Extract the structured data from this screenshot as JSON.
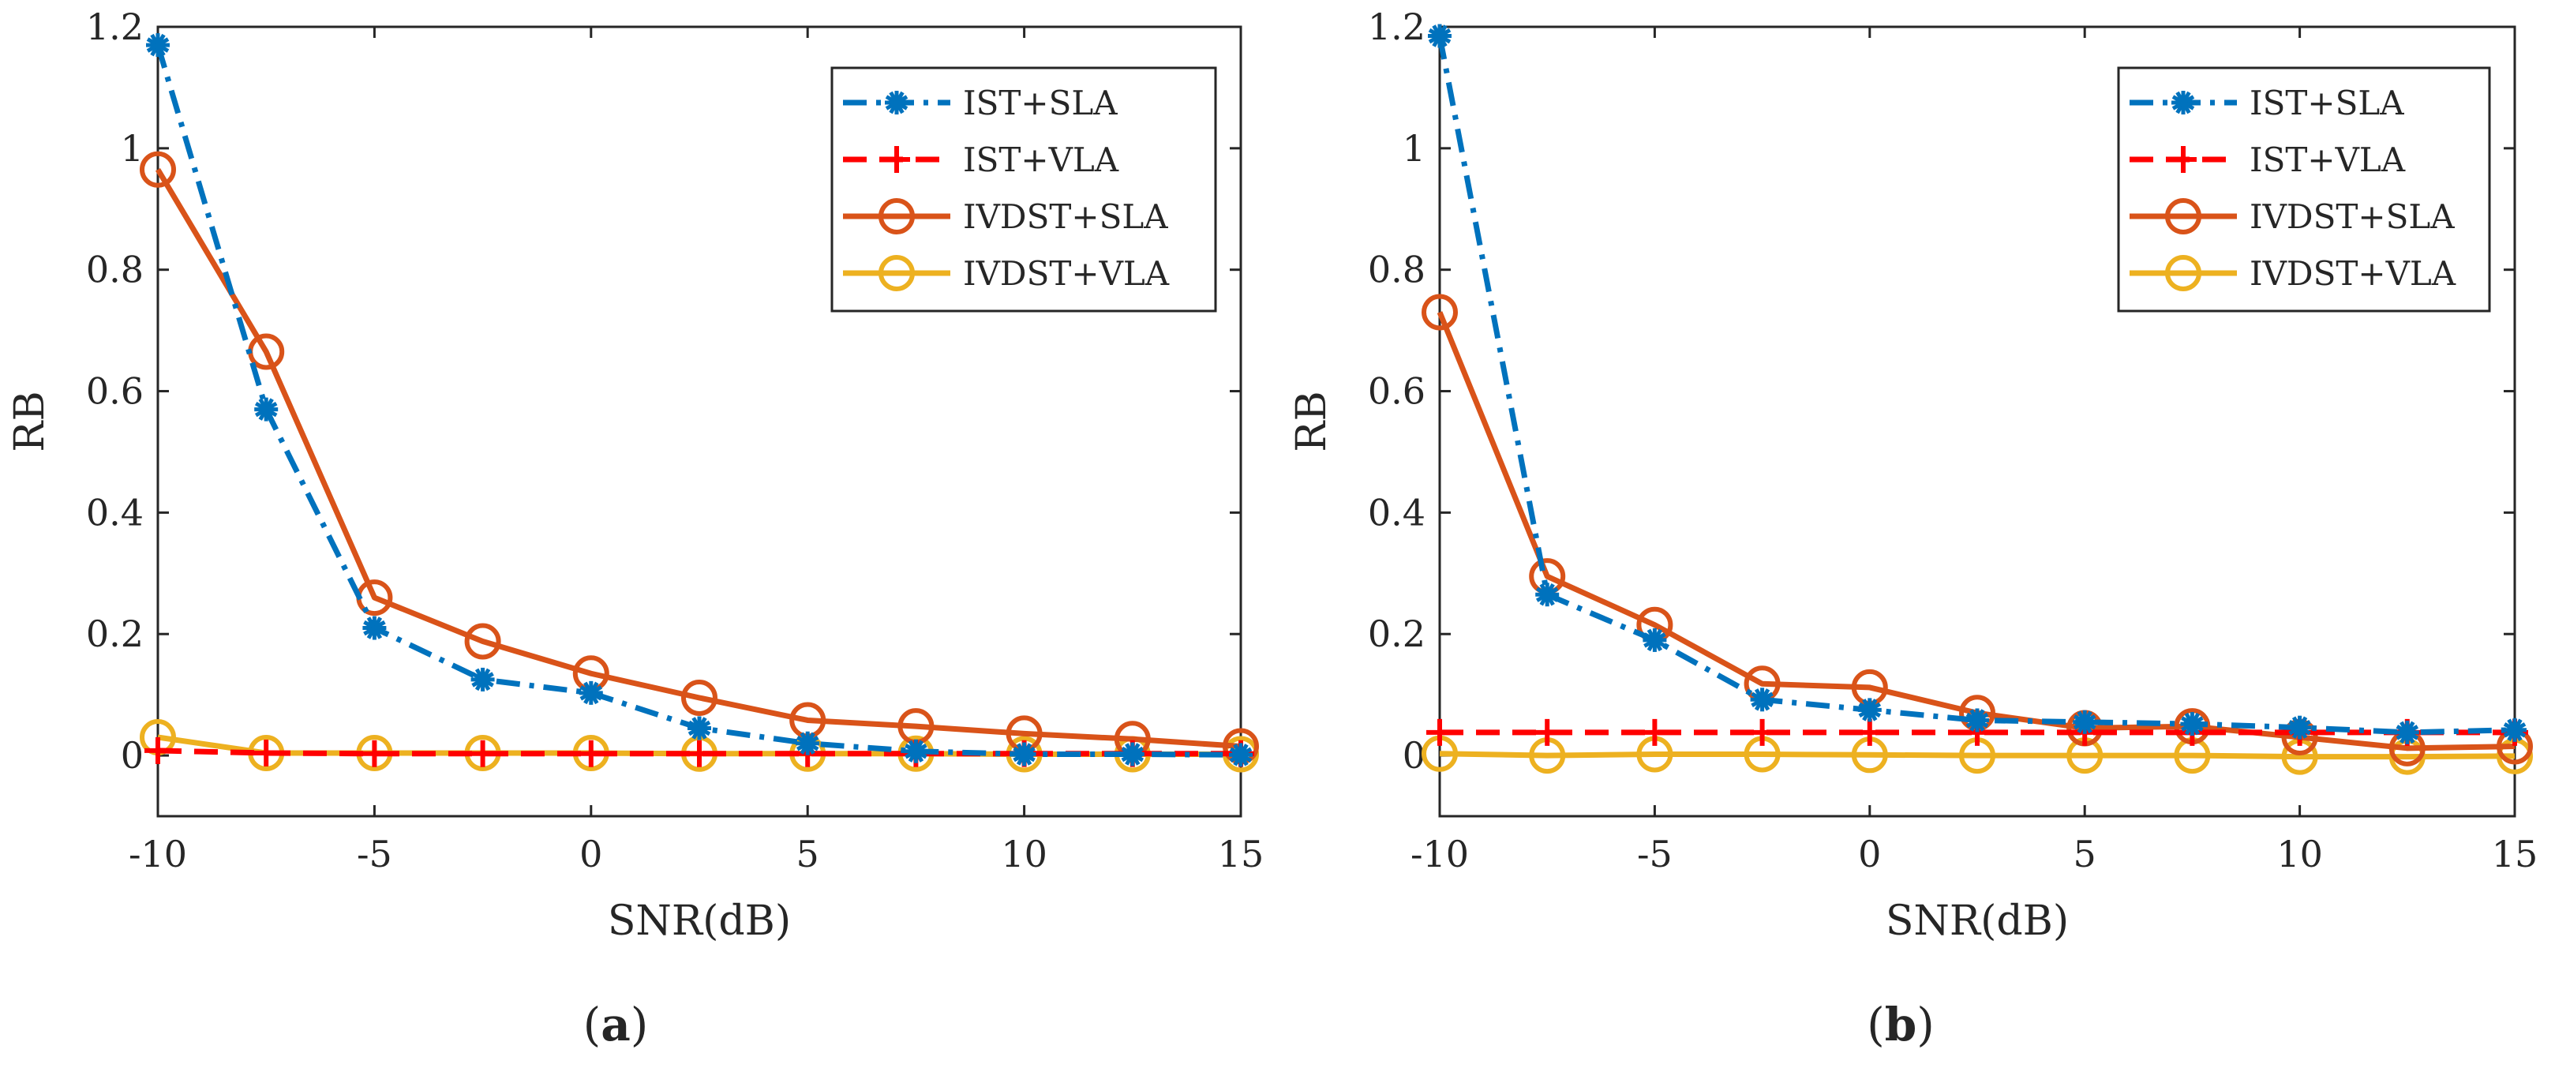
{
  "figure": {
    "panels": [
      {
        "label_open": "(",
        "label_letter": "a",
        "label_close": ")"
      },
      {
        "label_open": "(",
        "label_letter": "b",
        "label_close": ")"
      }
    ]
  },
  "chart_data": [
    {
      "type": "line",
      "title": "",
      "xlabel": "SNR(dB)",
      "ylabel": "RB",
      "xlim": [
        -10,
        15
      ],
      "ylim": [
        -0.1,
        1.2
      ],
      "xticks": [
        -10,
        -5,
        0,
        5,
        10,
        15
      ],
      "xtick_labels": [
        "-10",
        "-5",
        "0",
        "5",
        "10",
        "15"
      ],
      "yticks": [
        0,
        0.2,
        0.4,
        0.6,
        0.8,
        1.0,
        1.2
      ],
      "ytick_labels": [
        "0",
        "0.2",
        "0.4",
        "0.6",
        "0.8",
        "1",
        "1.2"
      ],
      "grid": false,
      "legend_position": "top-right",
      "x": [
        -10,
        -7.5,
        -5,
        -2.5,
        0,
        2.5,
        5,
        7.5,
        10,
        12.5,
        15
      ],
      "series": [
        {
          "name": "IST+SLA",
          "color": "#0072BD",
          "line": "dashdot",
          "marker": "asterisk",
          "values": [
            1.17,
            0.57,
            0.21,
            0.125,
            0.103,
            0.045,
            0.02,
            0.007,
            0.002,
            0.002,
            0.001
          ]
        },
        {
          "name": "IST+VLA",
          "color": "#FF0000",
          "line": "dashed",
          "marker": "plus",
          "values": [
            0.008,
            0.004,
            0.003,
            0.003,
            0.003,
            0.003,
            0.003,
            0.003,
            0.003,
            0.003,
            0.003
          ]
        },
        {
          "name": "IVDST+SLA",
          "color": "#D95319",
          "line": "solid",
          "marker": "circle",
          "values": [
            0.965,
            0.665,
            0.26,
            0.188,
            0.135,
            0.095,
            0.058,
            0.048,
            0.036,
            0.027,
            0.015
          ]
        },
        {
          "name": "IVDST+VLA",
          "color": "#EDB120",
          "line": "solid",
          "marker": "circle",
          "values": [
            0.03,
            0.004,
            0.004,
            0.004,
            0.004,
            0.003,
            0.003,
            0.003,
            0.002,
            0.002,
            0.002
          ]
        }
      ]
    },
    {
      "type": "line",
      "title": "",
      "xlabel": "SNR(dB)",
      "ylabel": "RB",
      "xlim": [
        -10,
        15
      ],
      "ylim": [
        -0.1,
        1.2
      ],
      "xticks": [
        -10,
        -5,
        0,
        5,
        10,
        15
      ],
      "xtick_labels": [
        "-10",
        "-5",
        "0",
        "5",
        "10",
        "15"
      ],
      "yticks": [
        0,
        0.2,
        0.4,
        0.6,
        0.8,
        1.0,
        1.2
      ],
      "ytick_labels": [
        "0",
        "0.2",
        "0.4",
        "0.6",
        "0.8",
        "1",
        "1.2"
      ],
      "grid": false,
      "legend_position": "top-right",
      "x": [
        -10,
        -7.5,
        -5,
        -2.5,
        0,
        2.5,
        5,
        7.5,
        10,
        12.5,
        15
      ],
      "series": [
        {
          "name": "IST+SLA",
          "color": "#0072BD",
          "line": "dashdot",
          "marker": "asterisk",
          "values": [
            1.185,
            0.265,
            0.19,
            0.092,
            0.075,
            0.058,
            0.055,
            0.052,
            0.046,
            0.038,
            0.042
          ]
        },
        {
          "name": "IST+VLA",
          "color": "#FF0000",
          "line": "dashed",
          "marker": "plus",
          "values": [
            0.038,
            0.038,
            0.038,
            0.038,
            0.038,
            0.038,
            0.038,
            0.038,
            0.038,
            0.038,
            0.038
          ]
        },
        {
          "name": "IVDST+SLA",
          "color": "#D95319",
          "line": "solid",
          "marker": "circle",
          "values": [
            0.73,
            0.295,
            0.215,
            0.118,
            0.112,
            0.07,
            0.045,
            0.048,
            0.03,
            0.012,
            0.015
          ]
        },
        {
          "name": "IVDST+VLA",
          "color": "#EDB120",
          "line": "solid",
          "marker": "circle",
          "values": [
            0.003,
            0.0,
            0.002,
            0.002,
            0.001,
            0.0,
            0.0,
            0.0,
            -0.002,
            -0.002,
            -0.001
          ]
        }
      ]
    }
  ]
}
